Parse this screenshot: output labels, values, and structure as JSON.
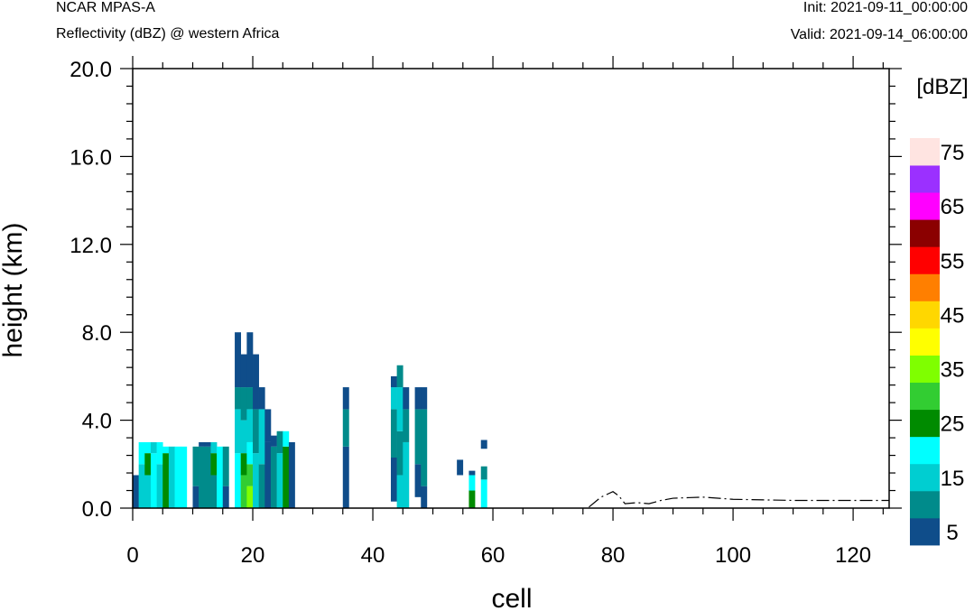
{
  "header": {
    "model": "NCAR MPAS-A",
    "field": "Reflectivity (dBZ) @ western Africa",
    "init": "Init: 2021-09-11_00:00:00",
    "valid": "Valid: 2021-09-14_06:00:00"
  },
  "chart_data": {
    "type": "heatmap",
    "title": "",
    "xlabel": "cell",
    "ylabel": "height (km)",
    "xlim": [
      0,
      126
    ],
    "ylim": [
      0,
      20
    ],
    "x_ticks": [
      0,
      20,
      40,
      60,
      80,
      100,
      120
    ],
    "x_tick_labels": [
      "0",
      "20",
      "40",
      "60",
      "80",
      "100",
      "120"
    ],
    "y_ticks": [
      0,
      4,
      8,
      12,
      16,
      20
    ],
    "y_tick_labels": [
      "0.0",
      "4.0",
      "8.0",
      "12.0",
      "16.0",
      "20.0"
    ],
    "grid": false,
    "colorbar": {
      "title": "[dBZ]",
      "placement": "right",
      "bins": [
        {
          "from": 0,
          "to": 10,
          "color": "#0f4d8a"
        },
        {
          "from": 10,
          "to": 15,
          "color": "#008b8b"
        },
        {
          "from": 15,
          "to": 20,
          "color": "#00ced1"
        },
        {
          "from": 20,
          "to": 25,
          "color": "#00ffff"
        },
        {
          "from": 25,
          "to": 30,
          "color": "#008b00"
        },
        {
          "from": 30,
          "to": 35,
          "color": "#32cd32"
        },
        {
          "from": 35,
          "to": 40,
          "color": "#7fff00"
        },
        {
          "from": 40,
          "to": 45,
          "color": "#ffff00"
        },
        {
          "from": 45,
          "to": 50,
          "color": "#ffd700"
        },
        {
          "from": 50,
          "to": 55,
          "color": "#ff7f00"
        },
        {
          "from": 55,
          "to": 60,
          "color": "#ff0000"
        },
        {
          "from": 60,
          "to": 65,
          "color": "#8b0000"
        },
        {
          "from": 65,
          "to": 70,
          "color": "#ff00ff"
        },
        {
          "from": 70,
          "to": 75,
          "color": "#9b30ff"
        },
        {
          "from": 75,
          "to": 80,
          "color": "#ffe4e1"
        }
      ],
      "labels": [
        "5",
        "15",
        "25",
        "35",
        "45",
        "55",
        "65",
        "75"
      ]
    },
    "reflectivity_columns": [
      {
        "cell": 0,
        "segments": [
          {
            "z0": 0.0,
            "z1": 1.5,
            "dbz": 5
          }
        ]
      },
      {
        "cell": 1,
        "segments": [
          {
            "z0": 0.0,
            "z1": 2.0,
            "dbz": 15
          },
          {
            "z0": 2.0,
            "z1": 3.0,
            "dbz": 20
          }
        ]
      },
      {
        "cell": 2,
        "segments": [
          {
            "z0": 0.0,
            "z1": 1.5,
            "dbz": 15
          },
          {
            "z0": 1.5,
            "z1": 2.5,
            "dbz": 25
          },
          {
            "z0": 2.5,
            "z1": 3.0,
            "dbz": 20
          }
        ]
      },
      {
        "cell": 3,
        "segments": [
          {
            "z0": 0.0,
            "z1": 2.5,
            "dbz": 20
          },
          {
            "z0": 2.5,
            "z1": 3.0,
            "dbz": 15
          }
        ]
      },
      {
        "cell": 4,
        "segments": [
          {
            "z0": 0.0,
            "z1": 2.0,
            "dbz": 15
          },
          {
            "z0": 2.0,
            "z1": 3.0,
            "dbz": 20
          }
        ]
      },
      {
        "cell": 5,
        "segments": [
          {
            "z0": 0.0,
            "z1": 2.5,
            "dbz": 25
          },
          {
            "z0": 2.5,
            "z1": 2.8,
            "dbz": 20
          }
        ]
      },
      {
        "cell": 6,
        "segments": [
          {
            "z0": 0.0,
            "z1": 2.8,
            "dbz": 15
          }
        ]
      },
      {
        "cell": 7,
        "segments": [
          {
            "z0": 0.0,
            "z1": 2.8,
            "dbz": 20
          }
        ]
      },
      {
        "cell": 8,
        "segments": [
          {
            "z0": 0.0,
            "z1": 2.8,
            "dbz": 20
          }
        ]
      },
      {
        "cell": 10,
        "segments": [
          {
            "z0": 0.0,
            "z1": 1.0,
            "dbz": 5
          },
          {
            "z0": 1.0,
            "z1": 2.8,
            "dbz": 10
          }
        ]
      },
      {
        "cell": 11,
        "segments": [
          {
            "z0": 0.0,
            "z1": 2.8,
            "dbz": 10
          },
          {
            "z0": 2.8,
            "z1": 3.0,
            "dbz": 5
          }
        ]
      },
      {
        "cell": 12,
        "segments": [
          {
            "z0": 0.0,
            "z1": 2.8,
            "dbz": 10
          },
          {
            "z0": 2.8,
            "z1": 3.0,
            "dbz": 5
          }
        ]
      },
      {
        "cell": 13,
        "segments": [
          {
            "z0": 0.0,
            "z1": 1.5,
            "dbz": 10
          },
          {
            "z0": 1.5,
            "z1": 2.5,
            "dbz": 25
          },
          {
            "z0": 2.5,
            "z1": 3.0,
            "dbz": 15
          }
        ]
      },
      {
        "cell": 14,
        "segments": [
          {
            "z0": 0.0,
            "z1": 2.8,
            "dbz": 20
          }
        ]
      },
      {
        "cell": 15,
        "segments": [
          {
            "z0": 0.0,
            "z1": 1.0,
            "dbz": 5
          },
          {
            "z0": 1.0,
            "z1": 2.8,
            "dbz": 10
          }
        ]
      },
      {
        "cell": 17,
        "segments": [
          {
            "z0": 0.0,
            "z1": 2.5,
            "dbz": 20
          },
          {
            "z0": 2.5,
            "z1": 4.5,
            "dbz": 15
          },
          {
            "z0": 4.5,
            "z1": 5.5,
            "dbz": 10
          },
          {
            "z0": 5.5,
            "z1": 8.0,
            "dbz": 5
          }
        ]
      },
      {
        "cell": 18,
        "segments": [
          {
            "z0": 0.0,
            "z1": 1.5,
            "dbz": 30
          },
          {
            "z0": 1.5,
            "z1": 2.5,
            "dbz": 25
          },
          {
            "z0": 2.5,
            "z1": 4.0,
            "dbz": 15
          },
          {
            "z0": 4.0,
            "z1": 5.5,
            "dbz": 10
          },
          {
            "z0": 5.5,
            "z1": 7.0,
            "dbz": 5
          }
        ]
      },
      {
        "cell": 19,
        "segments": [
          {
            "z0": 0.0,
            "z1": 1.0,
            "dbz": 35
          },
          {
            "z0": 1.0,
            "z1": 2.0,
            "dbz": 30
          },
          {
            "z0": 2.0,
            "z1": 3.0,
            "dbz": 20
          },
          {
            "z0": 3.0,
            "z1": 4.5,
            "dbz": 15
          },
          {
            "z0": 4.5,
            "z1": 5.5,
            "dbz": 10
          },
          {
            "z0": 5.5,
            "z1": 8.0,
            "dbz": 5
          }
        ]
      },
      {
        "cell": 20,
        "segments": [
          {
            "z0": 0.0,
            "z1": 2.5,
            "dbz": 15
          },
          {
            "z0": 2.5,
            "z1": 4.5,
            "dbz": 10
          },
          {
            "z0": 4.5,
            "z1": 7.0,
            "dbz": 5
          }
        ]
      },
      {
        "cell": 21,
        "segments": [
          {
            "z0": 0.0,
            "z1": 2.0,
            "dbz": 10
          },
          {
            "z0": 2.0,
            "z1": 4.5,
            "dbz": 15
          },
          {
            "z0": 4.5,
            "z1": 5.5,
            "dbz": 5
          }
        ]
      },
      {
        "cell": 22,
        "segments": [
          {
            "z0": 0.0,
            "z1": 3.0,
            "dbz": 5
          },
          {
            "z0": 3.0,
            "z1": 4.5,
            "dbz": 5
          }
        ]
      },
      {
        "cell": 23,
        "segments": [
          {
            "z0": 0.0,
            "z1": 2.8,
            "dbz": 10
          },
          {
            "z0": 2.8,
            "z1": 3.3,
            "dbz": 5
          }
        ]
      },
      {
        "cell": 24,
        "segments": [
          {
            "z0": 0.0,
            "z1": 2.5,
            "dbz": 15
          },
          {
            "z0": 2.5,
            "z1": 3.5,
            "dbz": 10
          }
        ]
      },
      {
        "cell": 25,
        "segments": [
          {
            "z0": 0.0,
            "z1": 2.8,
            "dbz": 25
          },
          {
            "z0": 2.8,
            "z1": 3.5,
            "dbz": 20
          }
        ]
      },
      {
        "cell": 26,
        "segments": [
          {
            "z0": 0.0,
            "z1": 3.0,
            "dbz": 5
          }
        ]
      },
      {
        "cell": 35,
        "segments": [
          {
            "z0": 0.0,
            "z1": 2.8,
            "dbz": 5
          },
          {
            "z0": 2.8,
            "z1": 4.5,
            "dbz": 10
          },
          {
            "z0": 4.5,
            "z1": 5.5,
            "dbz": 5
          }
        ]
      },
      {
        "cell": 43,
        "segments": [
          {
            "z0": 0.3,
            "z1": 2.3,
            "dbz": 5
          },
          {
            "z0": 2.3,
            "z1": 4.5,
            "dbz": 10
          },
          {
            "z0": 4.5,
            "z1": 5.5,
            "dbz": 15
          },
          {
            "z0": 5.5,
            "z1": 6.0,
            "dbz": 5
          }
        ]
      },
      {
        "cell": 44,
        "segments": [
          {
            "z0": 0.0,
            "z1": 1.5,
            "dbz": 15
          },
          {
            "z0": 1.5,
            "z1": 3.5,
            "dbz": 10
          },
          {
            "z0": 3.5,
            "z1": 5.5,
            "dbz": 15
          },
          {
            "z0": 5.5,
            "z1": 6.5,
            "dbz": 10
          }
        ]
      },
      {
        "cell": 45,
        "segments": [
          {
            "z0": 0.0,
            "z1": 3.0,
            "dbz": 15
          },
          {
            "z0": 3.0,
            "z1": 4.5,
            "dbz": 10
          },
          {
            "z0": 4.5,
            "z1": 5.5,
            "dbz": 5
          }
        ]
      },
      {
        "cell": 47,
        "segments": [
          {
            "z0": 0.5,
            "z1": 2.0,
            "dbz": 5
          },
          {
            "z0": 2.0,
            "z1": 4.5,
            "dbz": 10
          },
          {
            "z0": 4.5,
            "z1": 5.5,
            "dbz": 5
          }
        ]
      },
      {
        "cell": 48,
        "segments": [
          {
            "z0": 0.0,
            "z1": 1.0,
            "dbz": 5
          },
          {
            "z0": 1.0,
            "z1": 4.5,
            "dbz": 10
          },
          {
            "z0": 4.5,
            "z1": 5.5,
            "dbz": 5
          }
        ]
      },
      {
        "cell": 54,
        "segments": [
          {
            "z0": 1.5,
            "z1": 2.2,
            "dbz": 5
          }
        ]
      },
      {
        "cell": 56,
        "segments": [
          {
            "z0": 0.0,
            "z1": 0.8,
            "dbz": 25
          },
          {
            "z0": 0.8,
            "z1": 1.5,
            "dbz": 20
          },
          {
            "z0": 1.5,
            "z1": 1.7,
            "dbz": 5
          }
        ]
      },
      {
        "cell": 58,
        "segments": [
          {
            "z0": 0.0,
            "z1": 1.3,
            "dbz": 20
          },
          {
            "z0": 1.3,
            "z1": 1.9,
            "dbz": 10
          },
          {
            "z0": 2.7,
            "z1": 3.1,
            "dbz": 5
          }
        ]
      }
    ],
    "terrain": {
      "x": [
        76,
        78,
        80,
        81,
        82,
        84,
        86,
        88,
        90,
        95,
        100,
        110,
        120,
        126
      ],
      "y": [
        0.05,
        0.5,
        0.75,
        0.55,
        0.2,
        0.25,
        0.2,
        0.35,
        0.45,
        0.5,
        0.4,
        0.35,
        0.35,
        0.35
      ]
    }
  }
}
